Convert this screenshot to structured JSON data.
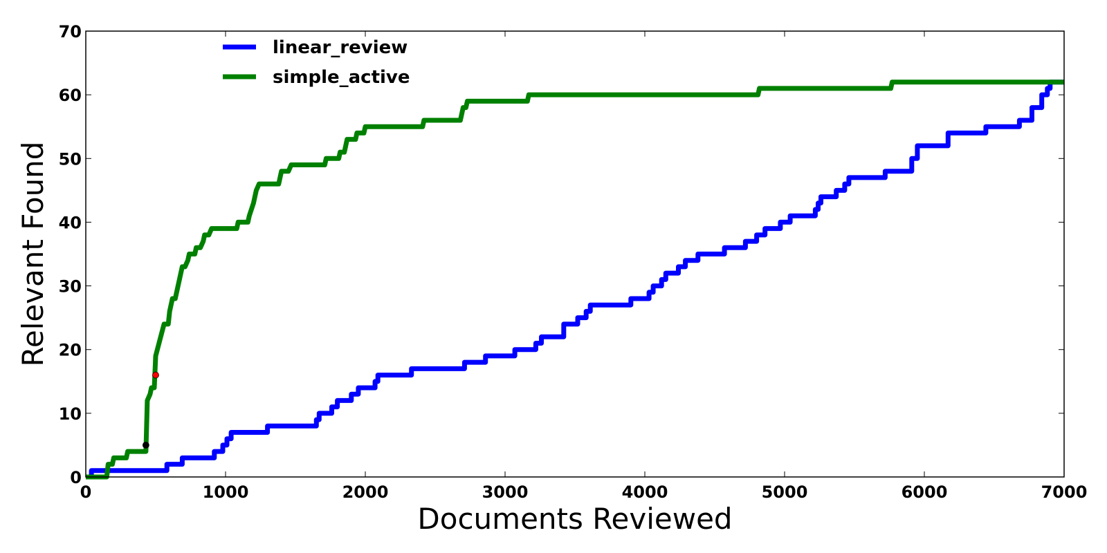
{
  "chart_data": {
    "type": "line",
    "xlabel": "Documents Reviewed",
    "ylabel": "Relevant Found",
    "xlim": [
      0,
      7000
    ],
    "ylim": [
      0,
      70
    ],
    "xticks": [
      0,
      1000,
      2000,
      3000,
      4000,
      5000,
      6000,
      7000
    ],
    "yticks": [
      0,
      10,
      20,
      30,
      40,
      50,
      60,
      70
    ],
    "xtick_labels": [
      "0",
      "1000",
      "2000",
      "3000",
      "4000",
      "5000",
      "6000",
      "7000"
    ],
    "ytick_labels": [
      "0",
      "10",
      "20",
      "30",
      "40",
      "50",
      "60",
      "70"
    ],
    "grid": false,
    "legend_position": "top-left",
    "series": [
      {
        "name": "linear_review",
        "color": "#0000ff",
        "points": [
          [
            0,
            0
          ],
          [
            40,
            0
          ],
          [
            40,
            1
          ],
          [
            580,
            1
          ],
          [
            580,
            2
          ],
          [
            690,
            2
          ],
          [
            690,
            3
          ],
          [
            920,
            3
          ],
          [
            920,
            4
          ],
          [
            980,
            4
          ],
          [
            980,
            5
          ],
          [
            1010,
            5
          ],
          [
            1010,
            6
          ],
          [
            1040,
            6
          ],
          [
            1040,
            7
          ],
          [
            1300,
            7
          ],
          [
            1300,
            8
          ],
          [
            1650,
            8
          ],
          [
            1650,
            9
          ],
          [
            1670,
            9
          ],
          [
            1670,
            10
          ],
          [
            1760,
            10
          ],
          [
            1760,
            11
          ],
          [
            1800,
            11
          ],
          [
            1800,
            12
          ],
          [
            1900,
            12
          ],
          [
            1900,
            13
          ],
          [
            1950,
            13
          ],
          [
            1950,
            14
          ],
          [
            2070,
            14
          ],
          [
            2070,
            15
          ],
          [
            2090,
            15
          ],
          [
            2090,
            16
          ],
          [
            2330,
            16
          ],
          [
            2330,
            17
          ],
          [
            2710,
            17
          ],
          [
            2710,
            18
          ],
          [
            2860,
            18
          ],
          [
            2860,
            19
          ],
          [
            3070,
            19
          ],
          [
            3070,
            20
          ],
          [
            3220,
            20
          ],
          [
            3220,
            21
          ],
          [
            3260,
            21
          ],
          [
            3260,
            22
          ],
          [
            3420,
            22
          ],
          [
            3420,
            24
          ],
          [
            3520,
            24
          ],
          [
            3520,
            25
          ],
          [
            3580,
            25
          ],
          [
            3580,
            26
          ],
          [
            3610,
            26
          ],
          [
            3610,
            27
          ],
          [
            3900,
            27
          ],
          [
            3900,
            28
          ],
          [
            4030,
            28
          ],
          [
            4030,
            29
          ],
          [
            4060,
            29
          ],
          [
            4060,
            30
          ],
          [
            4120,
            30
          ],
          [
            4120,
            31
          ],
          [
            4150,
            31
          ],
          [
            4150,
            32
          ],
          [
            4240,
            32
          ],
          [
            4240,
            33
          ],
          [
            4290,
            33
          ],
          [
            4290,
            34
          ],
          [
            4380,
            34
          ],
          [
            4380,
            35
          ],
          [
            4570,
            35
          ],
          [
            4570,
            36
          ],
          [
            4720,
            36
          ],
          [
            4720,
            37
          ],
          [
            4800,
            37
          ],
          [
            4800,
            38
          ],
          [
            4860,
            38
          ],
          [
            4860,
            39
          ],
          [
            4970,
            39
          ],
          [
            4970,
            40
          ],
          [
            5040,
            40
          ],
          [
            5040,
            41
          ],
          [
            5220,
            41
          ],
          [
            5220,
            42
          ],
          [
            5240,
            42
          ],
          [
            5240,
            43
          ],
          [
            5260,
            43
          ],
          [
            5260,
            44
          ],
          [
            5370,
            44
          ],
          [
            5370,
            45
          ],
          [
            5430,
            45
          ],
          [
            5430,
            46
          ],
          [
            5460,
            46
          ],
          [
            5460,
            47
          ],
          [
            5720,
            47
          ],
          [
            5720,
            48
          ],
          [
            5910,
            48
          ],
          [
            5910,
            50
          ],
          [
            5950,
            50
          ],
          [
            5950,
            52
          ],
          [
            6170,
            52
          ],
          [
            6170,
            54
          ],
          [
            6440,
            54
          ],
          [
            6440,
            55
          ],
          [
            6680,
            55
          ],
          [
            6680,
            56
          ],
          [
            6770,
            56
          ],
          [
            6770,
            58
          ],
          [
            6840,
            58
          ],
          [
            6840,
            60
          ],
          [
            6880,
            60
          ],
          [
            6880,
            61
          ],
          [
            6900,
            61
          ],
          [
            6900,
            62
          ],
          [
            7000,
            62
          ]
        ]
      },
      {
        "name": "simple_active",
        "color": "#008000",
        "points": [
          [
            0,
            0
          ],
          [
            150,
            0
          ],
          [
            160,
            2
          ],
          [
            190,
            2
          ],
          [
            200,
            3
          ],
          [
            290,
            3
          ],
          [
            300,
            4
          ],
          [
            430,
            4
          ],
          [
            440,
            12
          ],
          [
            460,
            13
          ],
          [
            470,
            14
          ],
          [
            490,
            14
          ],
          [
            500,
            19
          ],
          [
            560,
            24
          ],
          [
            590,
            24
          ],
          [
            600,
            26
          ],
          [
            620,
            28
          ],
          [
            640,
            28
          ],
          [
            690,
            33
          ],
          [
            710,
            33
          ],
          [
            730,
            34
          ],
          [
            740,
            35
          ],
          [
            780,
            35
          ],
          [
            790,
            36
          ],
          [
            820,
            36
          ],
          [
            840,
            37
          ],
          [
            850,
            38
          ],
          [
            880,
            38
          ],
          [
            900,
            39
          ],
          [
            1080,
            39
          ],
          [
            1090,
            40
          ],
          [
            1160,
            40
          ],
          [
            1170,
            41
          ],
          [
            1200,
            43
          ],
          [
            1220,
            45
          ],
          [
            1240,
            46
          ],
          [
            1380,
            46
          ],
          [
            1400,
            48
          ],
          [
            1450,
            48
          ],
          [
            1470,
            49
          ],
          [
            1710,
            49
          ],
          [
            1720,
            50
          ],
          [
            1810,
            50
          ],
          [
            1820,
            51
          ],
          [
            1850,
            51
          ],
          [
            1870,
            53
          ],
          [
            1930,
            53
          ],
          [
            1940,
            54
          ],
          [
            1990,
            54
          ],
          [
            2000,
            55
          ],
          [
            2410,
            55
          ],
          [
            2420,
            56
          ],
          [
            2680,
            56
          ],
          [
            2700,
            58
          ],
          [
            2720,
            58
          ],
          [
            2730,
            59
          ],
          [
            3160,
            59
          ],
          [
            3170,
            60
          ],
          [
            4810,
            60
          ],
          [
            4820,
            61
          ],
          [
            5760,
            61
          ],
          [
            5770,
            62
          ],
          [
            7000,
            62
          ]
        ]
      }
    ],
    "markers": [
      {
        "x": 430,
        "y": 5,
        "color": "#000000"
      },
      {
        "x": 500,
        "y": 16,
        "color": "#ff0000"
      }
    ]
  }
}
